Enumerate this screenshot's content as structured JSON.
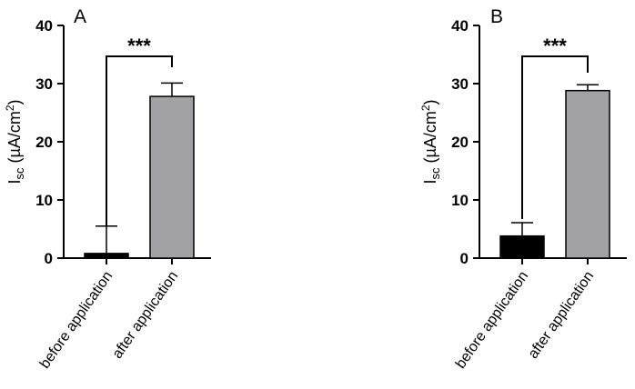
{
  "chart_data": [
    {
      "type": "bar",
      "panel_label": "A",
      "categories": [
        "before application",
        "after application"
      ],
      "values": [
        0.8,
        27.8
      ],
      "errors": [
        4.7,
        2.3
      ],
      "bar_colors": [
        "#000000",
        "#a1a1a6"
      ],
      "ylim": [
        0,
        40
      ],
      "yticks": [
        "0",
        "10",
        "20",
        "30",
        "40"
      ],
      "ylabel": {
        "main": "I",
        "sub": "sc",
        "unit_pre": " (µA/cm",
        "unit_sup": "2",
        "unit_post": ")"
      },
      "significance": "***"
    },
    {
      "type": "bar",
      "panel_label": "B",
      "categories": [
        "before application",
        "after application"
      ],
      "values": [
        3.8,
        28.8
      ],
      "errors": [
        2.3,
        1.0
      ],
      "bar_colors": [
        "#000000",
        "#a1a1a6"
      ],
      "ylim": [
        0,
        40
      ],
      "yticks": [
        "0",
        "10",
        "20",
        "30",
        "40"
      ],
      "ylabel": {
        "main": "I",
        "sub": "sc",
        "unit_pre": " (µA/cm",
        "unit_sup": "2",
        "unit_post": ")"
      },
      "significance": "***"
    }
  ]
}
